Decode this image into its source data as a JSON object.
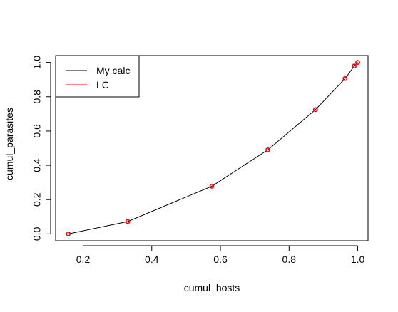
{
  "chart_data": {
    "type": "line",
    "title": "",
    "xlabel": "cumul_hosts",
    "ylabel": "cumul_parasites",
    "xlim": [
      0.12,
      1.03
    ],
    "ylim": [
      -0.04,
      1.04
    ],
    "x_ticks": [
      "0.2",
      "0.4",
      "0.6",
      "0.8",
      "1.0"
    ],
    "y_ticks": [
      "0.0",
      "0.2",
      "0.4",
      "0.6",
      "0.8",
      "1.0"
    ],
    "grid": false,
    "legend_position": "top-left",
    "series": [
      {
        "name": "My calc",
        "color": "#000000",
        "style": "line",
        "x": [
          0.157,
          0.33,
          0.575,
          0.738,
          0.877,
          0.963,
          0.99,
          1.0
        ],
        "y": [
          0.0,
          0.072,
          0.278,
          0.49,
          0.725,
          0.906,
          0.979,
          1.0
        ]
      },
      {
        "name": "LC",
        "color": "#ff0000",
        "style": "points",
        "x": [
          0.157,
          0.33,
          0.575,
          0.738,
          0.877,
          0.963,
          0.99,
          1.0
        ],
        "y": [
          0.0,
          0.072,
          0.278,
          0.49,
          0.725,
          0.906,
          0.979,
          1.0
        ]
      }
    ]
  }
}
